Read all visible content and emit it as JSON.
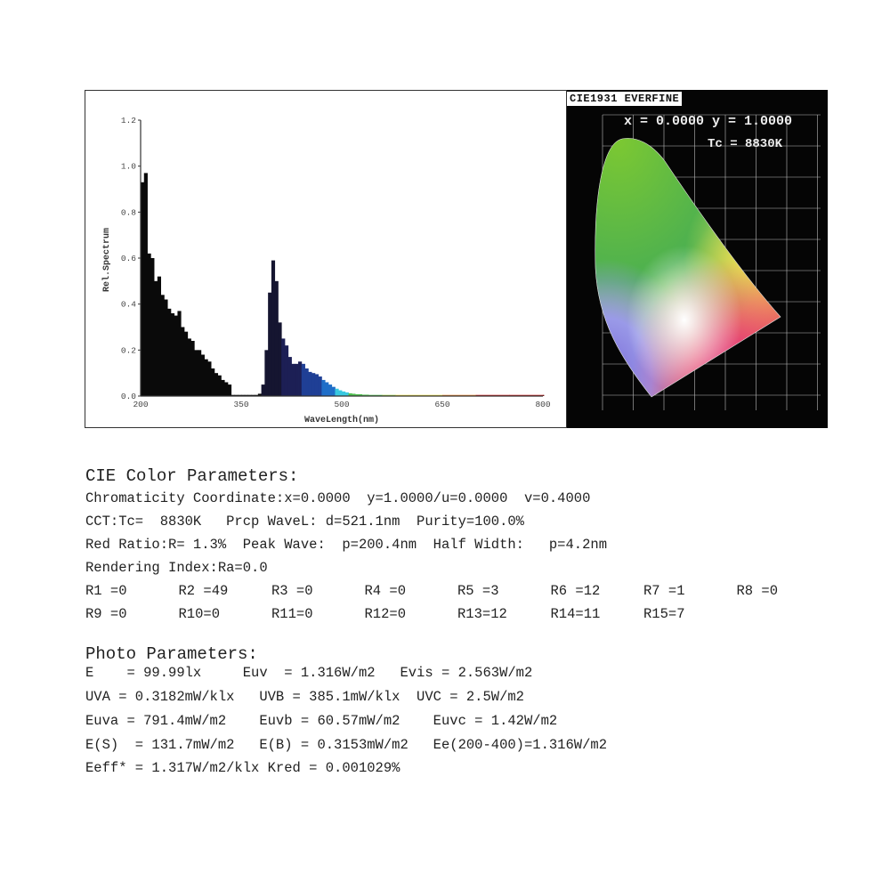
{
  "chart_data": {
    "type": "area",
    "xlabel": "WaveLength(nm)",
    "ylabel": "Rel.Spectrum",
    "xlim": [
      200,
      800
    ],
    "ylim": [
      0,
      1.2
    ],
    "xticks": [
      "200",
      "350",
      "500",
      "650",
      "800"
    ],
    "yticks": [
      "0.0",
      "0.2",
      "0.4",
      "0.6",
      "0.8",
      "1.0",
      "1.2"
    ],
    "grid": false,
    "fill": "wavelength-colored (black in UV)",
    "x": [
      200,
      205,
      210,
      215,
      220,
      225,
      230,
      235,
      240,
      245,
      250,
      255,
      260,
      265,
      270,
      275,
      280,
      285,
      290,
      295,
      300,
      305,
      310,
      315,
      320,
      325,
      330,
      335,
      340,
      345,
      350,
      355,
      360,
      365,
      370,
      375,
      380,
      385,
      390,
      395,
      400,
      405,
      410,
      415,
      420,
      425,
      430,
      435,
      440,
      445,
      450,
      455,
      460,
      465,
      470,
      475,
      480,
      485,
      490,
      495,
      500,
      505,
      510,
      515,
      520,
      530,
      540,
      560,
      580,
      600,
      650,
      700,
      750,
      800
    ],
    "y": [
      0.93,
      0.97,
      0.62,
      0.6,
      0.5,
      0.52,
      0.44,
      0.42,
      0.38,
      0.36,
      0.35,
      0.37,
      0.3,
      0.28,
      0.25,
      0.24,
      0.2,
      0.2,
      0.18,
      0.16,
      0.15,
      0.12,
      0.1,
      0.09,
      0.07,
      0.06,
      0.05,
      0.005,
      0.005,
      0.005,
      0.005,
      0.005,
      0.005,
      0.005,
      0.005,
      0.01,
      0.05,
      0.2,
      0.45,
      0.59,
      0.5,
      0.32,
      0.25,
      0.22,
      0.17,
      0.14,
      0.14,
      0.15,
      0.14,
      0.12,
      0.105,
      0.1,
      0.095,
      0.085,
      0.07,
      0.06,
      0.05,
      0.04,
      0.032,
      0.025,
      0.02,
      0.016,
      0.012,
      0.01,
      0.008,
      0.006,
      0.005,
      0.005,
      0.005,
      0.005,
      0.005,
      0.005,
      0.005,
      0.005
    ]
  },
  "cie": {
    "title": "CIE1931 EVERFINE",
    "xy_readout": "x = 0.0000 y = 1.0000",
    "tc_readout": "Tc = 8830K"
  },
  "color_params": {
    "heading": "CIE Color Parameters:",
    "line1": "Chromaticity Coordinate:x=0.0000  y=1.0000/u=0.0000  v=0.4000",
    "line2": "CCT:Tc=  8830K   Prcp WaveL: d=521.1nm  Purity=100.0%",
    "line3": "Red Ratio:R= 1.3%  Peak Wave:  p=200.4nm  Half Width:   p=4.2nm",
    "line4": "Rendering Index:Ra=0.0",
    "r_values": [
      "R1 =0",
      "R2 =49",
      "R3 =0",
      "R4 =0",
      "R5 =3",
      "R6 =12",
      "R7 =1",
      "R8 =0",
      "R9 =0",
      "R10=0",
      "R11=0",
      "R12=0",
      "R13=12",
      "R14=11",
      "R15=7"
    ]
  },
  "photo_params": {
    "heading": "Photo Parameters:",
    "line1": "E    = 99.99lx     Euv  = 1.316W/m2   Evis = 2.563W/m2",
    "line2": "UVA = 0.3182mW/klx   UVB = 385.1mW/klx  UVC = 2.5W/m2",
    "line3": "Euva = 791.4mW/m2    Euvb = 60.57mW/m2    Euvc = 1.42W/m2",
    "line4": "E(S)  = 131.7mW/m2   E(B) = 0.3153mW/m2   Ee(200-400)=1.316W/m2",
    "line5": "Eeff* = 1.317W/m2/klx Kred = 0.001029%"
  }
}
